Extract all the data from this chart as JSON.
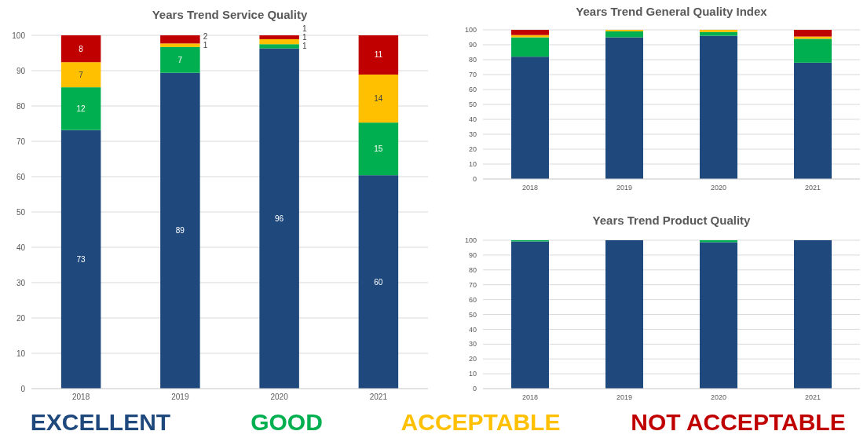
{
  "chart_data": [
    {
      "type": "bar",
      "title": "Years Trend Service Quality",
      "categories": [
        "2018",
        "2019",
        "2020",
        "2021"
      ],
      "stacked": true,
      "ylim": [
        0,
        100
      ],
      "yticks": [
        0,
        10,
        20,
        30,
        40,
        50,
        60,
        70,
        80,
        90,
        100
      ],
      "grid": "y",
      "legend": "bottom",
      "series": [
        {
          "name": "EXCELLENT",
          "color": "#1f497d",
          "values": [
            73.2,
            89.4,
            96.3,
            60.4
          ],
          "value_labels": [
            "73",
            "89",
            "96",
            "60"
          ]
        },
        {
          "name": "GOOD",
          "color": "#00b050",
          "values": [
            12.1,
            7.3,
            1.2,
            14.9
          ],
          "value_labels": [
            "12",
            "7",
            "1",
            "15"
          ]
        },
        {
          "name": "ACCEPTABLE",
          "color": "#ffc000",
          "values": [
            7.1,
            1.0,
            1.4,
            13.6
          ],
          "value_labels": [
            "7",
            "1",
            "1",
            "14"
          ]
        },
        {
          "name": "NOT ACCEPTABLE",
          "color": "#c00000",
          "values": [
            7.6,
            2.3,
            1.1,
            11.1
          ],
          "value_labels": [
            "8",
            "2",
            "1",
            "11"
          ]
        }
      ]
    },
    {
      "type": "bar",
      "title": "Years Trend General Quality Index",
      "categories": [
        "2018",
        "2019",
        "2020",
        "2021"
      ],
      "stacked": true,
      "ylim": [
        0,
        100
      ],
      "yticks": [
        0,
        10,
        20,
        30,
        40,
        50,
        60,
        70,
        80,
        90,
        100
      ],
      "grid": "y",
      "series": [
        {
          "color": "#1f497d",
          "values": [
            82,
            95,
            96,
            78
          ]
        },
        {
          "color": "#00b050",
          "values": [
            13,
            4,
            2.5,
            16
          ]
        },
        {
          "color": "#ffc000",
          "values": [
            1.5,
            1,
            1.5,
            1.5
          ]
        },
        {
          "color": "#c00000",
          "values": [
            3.5,
            0,
            0,
            4.5
          ]
        }
      ]
    },
    {
      "type": "bar",
      "title": "Years Trend Product Quality",
      "categories": [
        "2018",
        "2019",
        "2020",
        "2021"
      ],
      "stacked": true,
      "ylim": [
        0,
        100
      ],
      "yticks": [
        0,
        10,
        20,
        30,
        40,
        50,
        60,
        70,
        80,
        90,
        100
      ],
      "grid": "y",
      "series": [
        {
          "color": "#1f497d",
          "values": [
            99.2,
            100,
            98.7,
            100
          ]
        },
        {
          "color": "#00b050",
          "values": [
            0.8,
            0,
            1.3,
            0
          ]
        }
      ]
    }
  ]
}
